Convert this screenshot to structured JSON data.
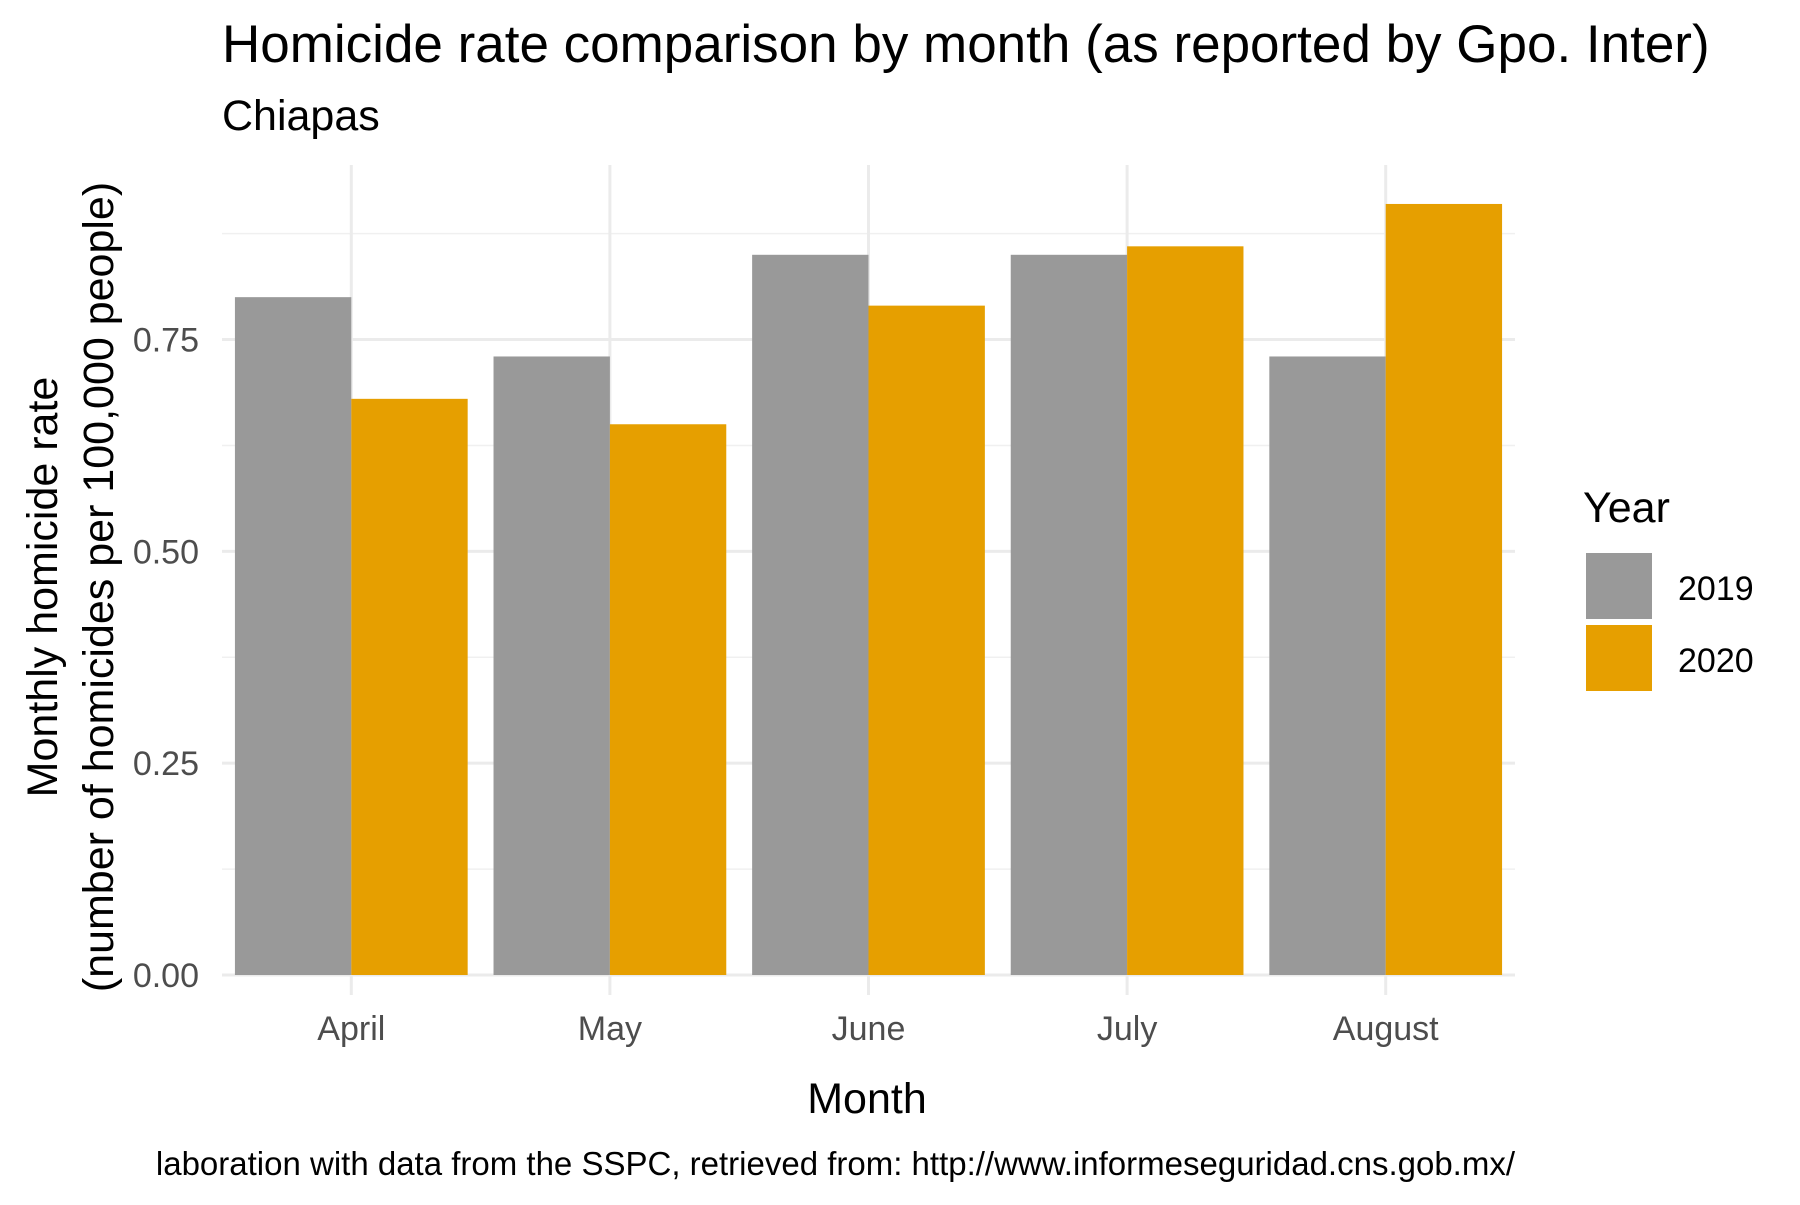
{
  "chart_data": {
    "type": "bar",
    "title": "Homicide rate comparison by month (as reported by Gpo. Inter)",
    "subtitle": "Chiapas",
    "xlabel": "Month",
    "ylabel_line1": "Monthly homicide rate",
    "ylabel_line2": "(number of homicides per 100,000 people)",
    "caption": "laboration with data from the SSPC, retrieved from: http://www.informeseguridad.cns.gob.mx/",
    "categories": [
      "April",
      "May",
      "June",
      "July",
      "August"
    ],
    "series": [
      {
        "name": "2019",
        "color": "#999999",
        "values": [
          0.8,
          0.73,
          0.85,
          0.85,
          0.73
        ]
      },
      {
        "name": "2020",
        "color": "#E69F00",
        "values": [
          0.68,
          0.65,
          0.79,
          0.86,
          0.91
        ]
      }
    ],
    "ylim": [
      0,
      0.9
    ],
    "yticks": [
      0.0,
      0.25,
      0.5,
      0.75
    ],
    "ytick_labels": [
      "0.00",
      "0.25",
      "0.50",
      "0.75"
    ],
    "grid": true,
    "legend": {
      "title": "Year",
      "position": "right"
    }
  }
}
